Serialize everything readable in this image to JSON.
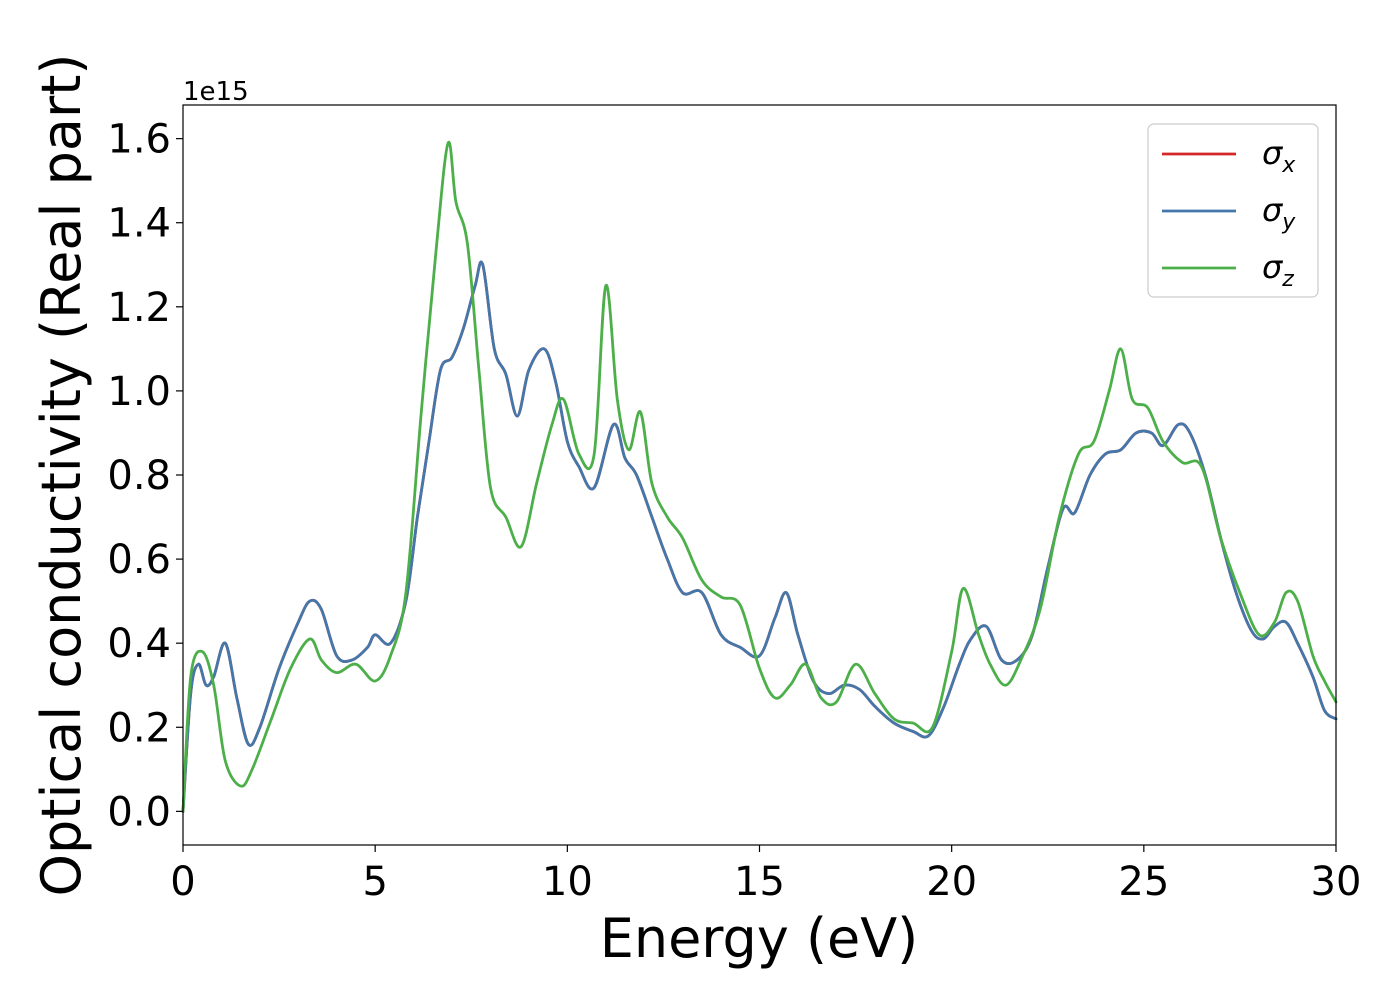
{
  "chart_data": {
    "type": "line",
    "title": "",
    "xlabel": "Energy (eV)",
    "ylabel": "Optical conductivity (Real part)",
    "y_offset_label": "1e15",
    "xlim": [
      0,
      30
    ],
    "ylim": [
      -0.08,
      1.68
    ],
    "x_ticks": [
      0,
      5,
      10,
      15,
      20,
      25,
      30
    ],
    "x_tick_labels": [
      "0",
      "5",
      "10",
      "15",
      "20",
      "25",
      "30"
    ],
    "y_ticks": [
      0.0,
      0.2,
      0.4,
      0.6,
      0.8,
      1.0,
      1.2,
      1.4,
      1.6
    ],
    "y_tick_labels": [
      "0.0",
      "0.2",
      "0.4",
      "0.6",
      "0.8",
      "1.0",
      "1.2",
      "1.4",
      "1.6"
    ],
    "grid": false,
    "legend_position": "top-right",
    "series": [
      {
        "name": "σx",
        "name_base": "σ",
        "name_sub": "x",
        "color": "#d62728",
        "x": [
          0,
          0.2,
          0.4,
          0.6,
          0.8,
          1.1,
          1.4,
          1.7,
          2.0,
          2.5,
          3.0,
          3.3,
          3.6,
          4.0,
          4.4,
          4.8,
          5.0,
          5.4,
          5.8,
          6.1,
          6.4,
          6.7,
          7.0,
          7.3,
          7.6,
          7.8,
          8.1,
          8.4,
          8.7,
          9.0,
          9.4,
          9.7,
          10.0,
          10.3,
          10.7,
          11.2,
          11.5,
          11.8,
          12.2,
          12.6,
          13.0,
          13.5,
          14.0,
          14.5,
          15.0,
          15.4,
          15.7,
          16.0,
          16.4,
          16.8,
          17.2,
          17.6,
          18.0,
          18.5,
          19.0,
          19.4,
          19.8,
          20.2,
          20.5,
          20.9,
          21.3,
          21.7,
          22.1,
          22.5,
          22.9,
          23.2,
          23.6,
          24.0,
          24.4,
          24.8,
          25.2,
          25.5,
          25.9,
          26.2,
          26.6,
          27.0,
          27.4,
          27.8,
          28.1,
          28.4,
          28.7,
          29.0,
          29.4,
          29.7,
          30.0
        ],
        "y": [
          0.0,
          0.28,
          0.35,
          0.3,
          0.32,
          0.4,
          0.27,
          0.16,
          0.2,
          0.34,
          0.45,
          0.5,
          0.48,
          0.37,
          0.36,
          0.39,
          0.42,
          0.4,
          0.5,
          0.7,
          0.88,
          1.05,
          1.08,
          1.15,
          1.25,
          1.3,
          1.1,
          1.04,
          0.94,
          1.05,
          1.1,
          1.02,
          0.88,
          0.82,
          0.77,
          0.92,
          0.84,
          0.8,
          0.7,
          0.6,
          0.52,
          0.52,
          0.42,
          0.39,
          0.37,
          0.46,
          0.52,
          0.42,
          0.31,
          0.28,
          0.3,
          0.29,
          0.25,
          0.21,
          0.19,
          0.18,
          0.25,
          0.35,
          0.41,
          0.44,
          0.36,
          0.36,
          0.42,
          0.58,
          0.72,
          0.71,
          0.8,
          0.85,
          0.86,
          0.9,
          0.9,
          0.87,
          0.92,
          0.9,
          0.8,
          0.65,
          0.52,
          0.43,
          0.41,
          0.44,
          0.45,
          0.4,
          0.32,
          0.24,
          0.22
        ]
      },
      {
        "name": "σy",
        "name_base": "σ",
        "name_sub": "y",
        "color": "#4477aa",
        "x": [
          0,
          0.2,
          0.4,
          0.6,
          0.8,
          1.1,
          1.4,
          1.7,
          2.0,
          2.5,
          3.0,
          3.3,
          3.6,
          4.0,
          4.4,
          4.8,
          5.0,
          5.4,
          5.8,
          6.1,
          6.4,
          6.7,
          7.0,
          7.3,
          7.6,
          7.8,
          8.1,
          8.4,
          8.7,
          9.0,
          9.4,
          9.7,
          10.0,
          10.3,
          10.7,
          11.2,
          11.5,
          11.8,
          12.2,
          12.6,
          13.0,
          13.5,
          14.0,
          14.5,
          15.0,
          15.4,
          15.7,
          16.0,
          16.4,
          16.8,
          17.2,
          17.6,
          18.0,
          18.5,
          19.0,
          19.4,
          19.8,
          20.2,
          20.5,
          20.9,
          21.3,
          21.7,
          22.1,
          22.5,
          22.9,
          23.2,
          23.6,
          24.0,
          24.4,
          24.8,
          25.2,
          25.5,
          25.9,
          26.2,
          26.6,
          27.0,
          27.4,
          27.8,
          28.1,
          28.4,
          28.7,
          29.0,
          29.4,
          29.7,
          30.0
        ],
        "y": [
          0.0,
          0.28,
          0.35,
          0.3,
          0.32,
          0.4,
          0.27,
          0.16,
          0.2,
          0.34,
          0.45,
          0.5,
          0.48,
          0.37,
          0.36,
          0.39,
          0.42,
          0.4,
          0.5,
          0.7,
          0.88,
          1.05,
          1.08,
          1.15,
          1.25,
          1.3,
          1.1,
          1.04,
          0.94,
          1.05,
          1.1,
          1.02,
          0.88,
          0.82,
          0.77,
          0.92,
          0.84,
          0.8,
          0.7,
          0.6,
          0.52,
          0.52,
          0.42,
          0.39,
          0.37,
          0.46,
          0.52,
          0.42,
          0.31,
          0.28,
          0.3,
          0.29,
          0.25,
          0.21,
          0.19,
          0.18,
          0.25,
          0.35,
          0.41,
          0.44,
          0.36,
          0.36,
          0.42,
          0.58,
          0.72,
          0.71,
          0.8,
          0.85,
          0.86,
          0.9,
          0.9,
          0.87,
          0.92,
          0.9,
          0.8,
          0.65,
          0.52,
          0.43,
          0.41,
          0.44,
          0.45,
          0.4,
          0.32,
          0.24,
          0.22
        ]
      },
      {
        "name": "σz",
        "name_base": "σ",
        "name_sub": "z",
        "color": "#4daf4a",
        "x": [
          0,
          0.2,
          0.5,
          0.8,
          1.1,
          1.5,
          1.8,
          2.3,
          2.8,
          3.3,
          3.6,
          4.0,
          4.5,
          5.0,
          5.4,
          5.8,
          6.2,
          6.6,
          6.9,
          7.1,
          7.4,
          7.7,
          8.0,
          8.4,
          8.8,
          9.2,
          9.6,
          9.9,
          10.3,
          10.7,
          11.0,
          11.3,
          11.6,
          11.9,
          12.2,
          12.6,
          13.0,
          13.5,
          14.0,
          14.5,
          15.0,
          15.4,
          15.8,
          16.2,
          16.6,
          17.0,
          17.5,
          18.0,
          18.5,
          19.0,
          19.5,
          20.0,
          20.3,
          20.7,
          21.0,
          21.4,
          21.8,
          22.3,
          22.8,
          23.3,
          23.7,
          24.1,
          24.4,
          24.7,
          25.1,
          25.5,
          26.0,
          26.5,
          27.0,
          27.5,
          28.0,
          28.4,
          28.7,
          29.0,
          29.4,
          29.7,
          30.0
        ],
        "y": [
          0.0,
          0.32,
          0.38,
          0.3,
          0.12,
          0.06,
          0.1,
          0.22,
          0.34,
          0.41,
          0.36,
          0.33,
          0.35,
          0.31,
          0.37,
          0.52,
          0.95,
          1.35,
          1.59,
          1.45,
          1.35,
          1.05,
          0.77,
          0.7,
          0.63,
          0.78,
          0.92,
          0.98,
          0.85,
          0.85,
          1.25,
          0.98,
          0.86,
          0.95,
          0.78,
          0.7,
          0.65,
          0.55,
          0.51,
          0.49,
          0.34,
          0.27,
          0.3,
          0.35,
          0.27,
          0.26,
          0.35,
          0.28,
          0.22,
          0.21,
          0.2,
          0.38,
          0.53,
          0.42,
          0.35,
          0.3,
          0.36,
          0.48,
          0.7,
          0.85,
          0.88,
          1.0,
          1.1,
          0.98,
          0.96,
          0.88,
          0.83,
          0.82,
          0.65,
          0.52,
          0.42,
          0.45,
          0.52,
          0.5,
          0.37,
          0.31,
          0.26
        ]
      }
    ]
  }
}
